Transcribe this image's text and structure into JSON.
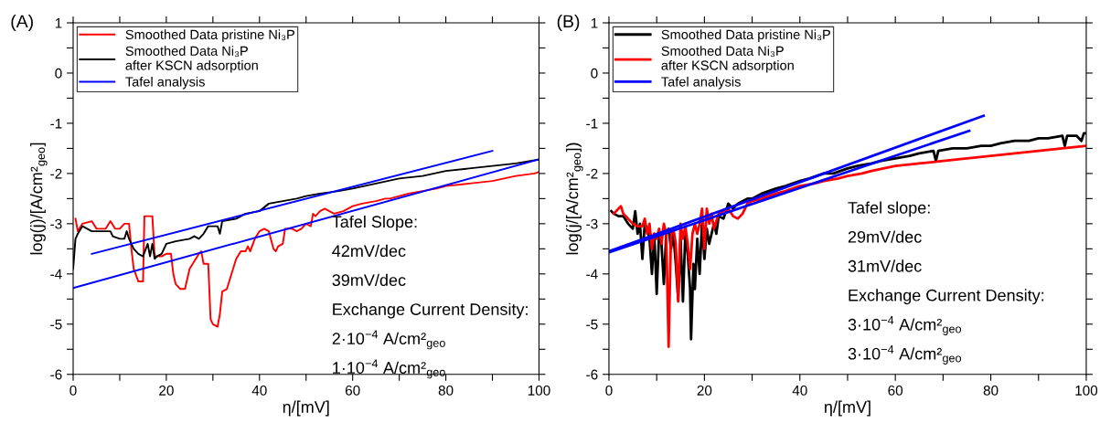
{
  "chart_data": [
    {
      "type": "line",
      "title": "(A)",
      "xlabel": "η/[mV]",
      "ylabel": "log(j)/[A/cm²$_{geo}$]",
      "xlim": [
        0,
        100
      ],
      "ylim": [
        -6,
        1
      ],
      "xticks": [
        0,
        {
          "value": 10,
          "label": null
        },
        20,
        {
          "value": 30,
          "label": null
        },
        40,
        {
          "value": 50,
          "label": null
        },
        60,
        {
          "value": 70,
          "label": null
        },
        80,
        {
          "value": 90,
          "label": null
        },
        100
      ],
      "yticks": [
        -6,
        {
          "value": -5.5,
          "label": null
        },
        -5,
        {
          "value": -4.5,
          "label": null
        },
        -4,
        {
          "value": -3.5,
          "label": null
        },
        -3,
        {
          "value": -2.5,
          "label": null
        },
        -2,
        {
          "value": -1.5,
          "label": null
        },
        -1,
        {
          "value": -0.5,
          "label": null
        },
        0,
        {
          "value": 0.5,
          "label": null
        },
        1
      ],
      "grid": false,
      "legend": "top left",
      "line_style": "solid",
      "marker": "none",
      "series": [
        {
          "name": "Smoothed Data pristine Ni₃P",
          "color": "#ff0000",
          "x": [
            0.5,
            1,
            2,
            4,
            5,
            7,
            8,
            9,
            10,
            11,
            12,
            12.5,
            13,
            14,
            15,
            15.3,
            17,
            17.5,
            19,
            20,
            21,
            21.5,
            22,
            23,
            24,
            25,
            26,
            27,
            27.5,
            28,
            29,
            29.5,
            30,
            31,
            31.5,
            32,
            33,
            34,
            35,
            36,
            37,
            37.5,
            38,
            39,
            40,
            41,
            42,
            43,
            43.5,
            44,
            45,
            45.5,
            47,
            48,
            49,
            50,
            51,
            51.5,
            52,
            53,
            54,
            55,
            56,
            58,
            59,
            60,
            62,
            65,
            67,
            68,
            70,
            72,
            75,
            78,
            80,
            85,
            90,
            95,
            99,
            100
          ],
          "values": [
            -2.9,
            -3.15,
            -3.0,
            -2.95,
            -3.1,
            -3.1,
            -2.95,
            -3.1,
            -3.1,
            -3.0,
            -3.0,
            -3.5,
            -3.9,
            -4.15,
            -4.15,
            -2.85,
            -2.85,
            -3.65,
            -3.65,
            -3.6,
            -3.6,
            -4.0,
            -4.2,
            -4.3,
            -4.3,
            -3.9,
            -3.75,
            -3.6,
            -3.55,
            -3.8,
            -3.8,
            -4.9,
            -5.0,
            -5.05,
            -4.8,
            -4.35,
            -4.3,
            -4.0,
            -3.7,
            -3.55,
            -3.55,
            -3.45,
            -3.55,
            -3.3,
            -3.15,
            -3.1,
            -3.15,
            -3.5,
            -3.55,
            -3.45,
            -3.4,
            -3.1,
            -3.1,
            -3.15,
            -3.1,
            -3.0,
            -3.05,
            -2.8,
            -2.85,
            -2.75,
            -2.7,
            -2.75,
            -2.8,
            -2.75,
            -2.7,
            -2.65,
            -2.6,
            -2.55,
            -2.5,
            -2.5,
            -2.45,
            -2.4,
            -2.35,
            -2.3,
            -2.25,
            -2.2,
            -2.15,
            -2.05,
            -2.0,
            -1.97
          ]
        },
        {
          "name": "Smoothed Data Ni₃P\nafter KSCN adsorption",
          "color": "#000000",
          "x": [
            0,
            0.5,
            1,
            2,
            3,
            4,
            6,
            8,
            8.5,
            10,
            11,
            11.5,
            12,
            13,
            14,
            15,
            16,
            16.5,
            17,
            17.5,
            18,
            19,
            20,
            22,
            25,
            26,
            27,
            28,
            29,
            31,
            31.5,
            32,
            35,
            37,
            40,
            42,
            45,
            48,
            50,
            53,
            57,
            60,
            65,
            70,
            75,
            80,
            85,
            90,
            95,
            100
          ],
          "values": [
            -3.9,
            -3.3,
            -3.2,
            -3.05,
            -3.1,
            -3.15,
            -3.15,
            -3.15,
            -3.25,
            -3.3,
            -3.3,
            -3.15,
            -3.3,
            -3.5,
            -3.6,
            -3.65,
            -3.4,
            -3.65,
            -3.4,
            -3.7,
            -3.65,
            -3.6,
            -3.4,
            -3.35,
            -3.3,
            -3.25,
            -3.3,
            -3.2,
            -3.05,
            -3.05,
            -3.2,
            -2.95,
            -2.9,
            -2.8,
            -2.75,
            -2.6,
            -2.55,
            -2.5,
            -2.45,
            -2.4,
            -2.35,
            -2.3,
            -2.2,
            -2.1,
            -2.05,
            -1.95,
            -1.9,
            -1.85,
            -1.8,
            -1.72
          ]
        },
        {
          "name": "Tafel analysis",
          "color": "#0000ff",
          "x": [
            4,
            90
          ],
          "values": [
            -3.6,
            -1.55
          ]
        },
        {
          "color": "#0000ff",
          "x": [
            0,
            100
          ],
          "values": [
            -4.28,
            -1.72
          ]
        }
      ],
      "annotations": [
        "Tafel Slope:",
        "42mV/dec",
        "39mV/dec",
        "Exchange Current Density:",
        "2·10$^{−4}$ A/cm²$_{geo}$",
        "1·10$^{−4}$ A/cm²$_{geo}$"
      ]
    },
    {
      "type": "line",
      "title": "(B)",
      "xlabel": "η/[mV]",
      "ylabel": "log(j/[A/cm²$_{geo}$])",
      "xlim": [
        0,
        100
      ],
      "ylim": [
        -6,
        1
      ],
      "xticks": [
        0,
        {
          "value": 10,
          "label": null
        },
        20,
        {
          "value": 30,
          "label": null
        },
        40,
        {
          "value": 50,
          "label": null
        },
        60,
        {
          "value": 70,
          "label": null
        },
        80,
        {
          "value": 90,
          "label": null
        },
        100
      ],
      "yticks": [
        -6,
        {
          "value": -5.5,
          "label": null
        },
        -5,
        {
          "value": -4.5,
          "label": null
        },
        -4,
        {
          "value": -3.5,
          "label": null
        },
        -3,
        {
          "value": -2.5,
          "label": null
        },
        -2,
        {
          "value": -1.5,
          "label": null
        },
        -1,
        {
          "value": -0.5,
          "label": null
        },
        0,
        {
          "value": 0.5,
          "label": null
        },
        1
      ],
      "grid": false,
      "legend": "top left",
      "line_style": "solid",
      "marker": "none",
      "series": [
        {
          "name": "Smoothed Data pristine Ni₃P",
          "color": "#000000",
          "x": [
            0.5,
            1,
            2,
            3,
            4,
            5,
            5.5,
            6,
            6.5,
            7,
            7.5,
            8,
            8.5,
            9,
            9.5,
            10,
            10.5,
            11,
            11.5,
            12,
            12.5,
            13,
            13.5,
            14,
            14.5,
            15,
            15.5,
            16,
            16.5,
            17,
            17.2,
            17.7,
            18,
            18.5,
            19,
            19.5,
            20,
            20.5,
            21,
            22,
            22.5,
            23,
            24,
            25,
            26,
            27,
            28,
            29,
            30,
            32,
            35,
            37,
            40,
            42,
            45,
            47,
            50,
            52,
            55,
            57,
            60,
            63,
            65,
            68,
            68.5,
            69,
            72,
            75,
            78,
            80,
            82,
            85,
            88,
            90,
            92,
            95,
            95.5,
            96,
            98,
            99,
            99.5,
            100
          ],
          "values": [
            -2.75,
            -2.8,
            -2.85,
            -2.85,
            -3.0,
            -3.1,
            -2.75,
            -3.2,
            -3.0,
            -3.7,
            -3.0,
            -3.1,
            -3.3,
            -4.0,
            -3.2,
            -4.4,
            -3.2,
            -3.4,
            -4.2,
            -3.2,
            -3.1,
            -3.5,
            -3.2,
            -3.8,
            -4.5,
            -3.3,
            -4.55,
            -3.2,
            -3.6,
            -4.3,
            -5.3,
            -3.8,
            -4.3,
            -3.3,
            -4.0,
            -3.0,
            -3.7,
            -3.1,
            -3.4,
            -3.0,
            -3.2,
            -2.85,
            -2.9,
            -2.6,
            -2.7,
            -2.6,
            -2.55,
            -2.5,
            -2.5,
            -2.4,
            -2.3,
            -2.25,
            -2.15,
            -2.1,
            -2.0,
            -2.0,
            -1.9,
            -1.85,
            -1.8,
            -1.75,
            -1.7,
            -1.65,
            -1.6,
            -1.55,
            -1.75,
            -1.55,
            -1.5,
            -1.5,
            -1.45,
            -1.45,
            -1.4,
            -1.35,
            -1.35,
            -1.3,
            -1.3,
            -1.25,
            -1.45,
            -1.25,
            -1.25,
            -1.35,
            -1.2,
            -1.2
          ]
        },
        {
          "name": "Smoothed Data Ni₃P\nafter KSCN adsorption",
          "color": "#ff0000",
          "x": [
            1,
            2,
            2.5,
            3,
            4,
            5,
            6,
            7,
            7.5,
            8,
            8.5,
            9,
            9.5,
            10,
            10.5,
            11,
            11.5,
            12,
            12.5,
            13,
            13.5,
            14,
            14.5,
            15,
            15.5,
            16,
            16.5,
            17,
            17.5,
            18,
            18.5,
            19,
            19.5,
            20,
            20.5,
            21,
            21.5,
            22,
            23,
            24,
            25,
            26,
            27,
            28,
            29,
            30,
            32,
            35,
            37,
            40,
            43,
            45,
            48,
            50,
            53,
            55,
            60,
            65,
            70,
            75,
            80,
            85,
            90,
            95,
            100
          ],
          "values": [
            -2.8,
            -2.7,
            -2.65,
            -2.8,
            -2.9,
            -3.0,
            -3.05,
            -3.05,
            -2.9,
            -3.2,
            -3.0,
            -3.5,
            -3.2,
            -3.3,
            -3.1,
            -3.4,
            -3.0,
            -3.2,
            -5.45,
            -3.2,
            -3.1,
            -3.4,
            -4.55,
            -3.0,
            -3.3,
            -3.05,
            -3.4,
            -3.9,
            -3.2,
            -3.0,
            -3.2,
            -3.0,
            -2.7,
            -3.5,
            -2.7,
            -3.0,
            -2.8,
            -3.1,
            -2.8,
            -2.75,
            -2.7,
            -2.85,
            -2.9,
            -2.8,
            -2.6,
            -2.55,
            -2.5,
            -2.4,
            -2.35,
            -2.25,
            -2.2,
            -2.15,
            -2.1,
            -2.05,
            -2.0,
            -1.95,
            -1.85,
            -1.8,
            -1.75,
            -1.7,
            -1.65,
            -1.6,
            -1.55,
            -1.5,
            -1.45
          ]
        },
        {
          "name": "Tafel analysis",
          "color": "#0000ff",
          "x": [
            0,
            78.5
          ],
          "values": [
            -3.55,
            -0.85
          ]
        },
        {
          "color": "#0000ff",
          "x": [
            0,
            75.5
          ],
          "values": [
            -3.57,
            -1.15
          ]
        }
      ],
      "annotations": [
        "Tafel slope:",
        "29mV/dec",
        "31mV/dec",
        "Exchange Current Density:",
        "3·10$^{−4}$ A/cm²$_{geo}$",
        "3·10$^{−4}$ A/cm²$_{geo}$"
      ]
    }
  ]
}
